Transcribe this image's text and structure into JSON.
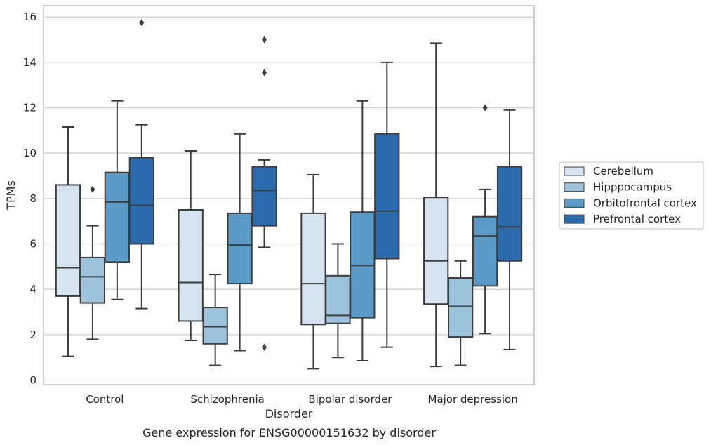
{
  "chart_data": {
    "type": "box",
    "xlabel": "Disorder",
    "ylabel": "TPMs",
    "caption": "Gene expression for ENSG00000151632 by disorder",
    "ylim": [
      -0.2,
      16.5
    ],
    "yticks": [
      0,
      2,
      4,
      6,
      8,
      10,
      12,
      14,
      16
    ],
    "grid": "horizontal",
    "legend_position": "right",
    "categories": [
      "Control",
      "Schizophrenia",
      "Bipolar disorder",
      "Major depression"
    ],
    "series": [
      {
        "name": "Cerebellum",
        "color": "#d6e4f2",
        "boxes": [
          {
            "whisker_low": 1.05,
            "q1": 3.7,
            "median": 4.95,
            "q3": 8.6,
            "whisker_high": 11.15,
            "outliers": []
          },
          {
            "whisker_low": 1.75,
            "q1": 2.6,
            "median": 4.3,
            "q3": 7.5,
            "whisker_high": 10.1,
            "outliers": []
          },
          {
            "whisker_low": 0.5,
            "q1": 2.45,
            "median": 4.25,
            "q3": 7.35,
            "whisker_high": 9.05,
            "outliers": []
          },
          {
            "whisker_low": 0.6,
            "q1": 3.35,
            "median": 5.25,
            "q3": 8.05,
            "whisker_high": 14.85,
            "outliers": []
          }
        ]
      },
      {
        "name": "Hipppocampus",
        "color": "#9dc2db",
        "boxes": [
          {
            "whisker_low": 1.8,
            "q1": 3.4,
            "median": 4.55,
            "q3": 5.4,
            "whisker_high": 6.8,
            "outliers": [
              8.4
            ]
          },
          {
            "whisker_low": 0.65,
            "q1": 1.6,
            "median": 2.35,
            "q3": 3.2,
            "whisker_high": 4.65,
            "outliers": []
          },
          {
            "whisker_low": 1.0,
            "q1": 2.5,
            "median": 2.85,
            "q3": 4.6,
            "whisker_high": 6.0,
            "outliers": []
          },
          {
            "whisker_low": 0.65,
            "q1": 1.9,
            "median": 3.25,
            "q3": 4.5,
            "whisker_high": 5.25,
            "outliers": []
          }
        ]
      },
      {
        "name": "Orbitofrontal cortex",
        "color": "#5b9ac6",
        "boxes": [
          {
            "whisker_low": 3.55,
            "q1": 5.2,
            "median": 7.85,
            "q3": 9.15,
            "whisker_high": 12.3,
            "outliers": []
          },
          {
            "whisker_low": 1.3,
            "q1": 4.25,
            "median": 5.95,
            "q3": 7.35,
            "whisker_high": 10.85,
            "outliers": []
          },
          {
            "whisker_low": 0.85,
            "q1": 2.75,
            "median": 5.05,
            "q3": 7.4,
            "whisker_high": 12.3,
            "outliers": []
          },
          {
            "whisker_low": 2.05,
            "q1": 4.15,
            "median": 6.35,
            "q3": 7.2,
            "whisker_high": 8.4,
            "outliers": [
              12.0
            ]
          }
        ]
      },
      {
        "name": "Prefrontal cortex",
        "color": "#2a6aad",
        "boxes": [
          {
            "whisker_low": 3.15,
            "q1": 6.0,
            "median": 7.7,
            "q3": 9.8,
            "whisker_high": 11.25,
            "outliers": [
              15.75
            ]
          },
          {
            "whisker_low": 5.85,
            "q1": 6.8,
            "median": 8.35,
            "q3": 9.4,
            "whisker_high": 9.7,
            "outliers": [
              15.0,
              13.55,
              1.45
            ]
          },
          {
            "whisker_low": 1.45,
            "q1": 5.35,
            "median": 7.45,
            "q3": 10.85,
            "whisker_high": 14.0,
            "outliers": []
          },
          {
            "whisker_low": 1.35,
            "q1": 5.25,
            "median": 6.75,
            "q3": 9.4,
            "whisker_high": 11.9,
            "outliers": []
          }
        ]
      }
    ]
  }
}
